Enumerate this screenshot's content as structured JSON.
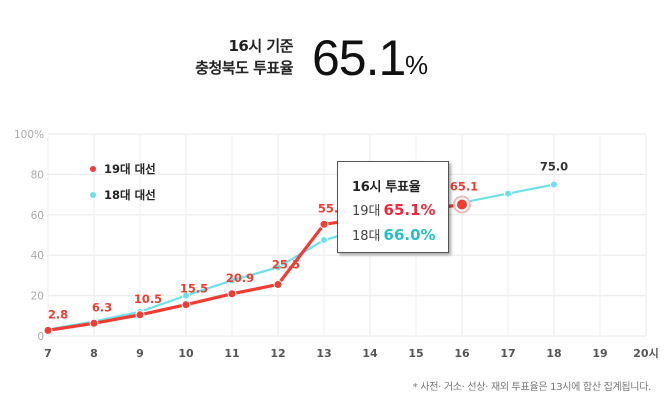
{
  "headline": {
    "line1": "16시 기준",
    "line2": "충청북도 투표율",
    "value": "65.1",
    "unit": "%"
  },
  "legend": [
    {
      "label": "19대 대선",
      "color": "#f03c32"
    },
    {
      "label": "18대 대선",
      "color": "#6ee0ea"
    }
  ],
  "tooltip": {
    "title": "16시 투표율",
    "rows": [
      {
        "label": "19대",
        "value": "65.1%",
        "color": "#f0283c"
      },
      {
        "label": "18대",
        "value": "66.0%",
        "color": "#24c0c8"
      }
    ]
  },
  "footnote": "* 사전· 거소· 선상· 재외 투표율은 13시에 합산 집계됩니다.",
  "chart_data": {
    "type": "line",
    "title": "16시 기준 충청북도 투표율",
    "xlabel": "",
    "ylabel": "",
    "x": [
      7,
      8,
      9,
      10,
      11,
      12,
      13,
      14,
      15,
      16,
      17,
      18,
      19,
      20
    ],
    "x_tick_labels": [
      "7",
      "8",
      "9",
      "10",
      "11",
      "12",
      "13",
      "14",
      "15",
      "16",
      "17",
      "18",
      "19",
      "20시"
    ],
    "y_tick_labels": [
      "0",
      "20",
      "40",
      "60",
      "80",
      "100%"
    ],
    "ylim": [
      0,
      100
    ],
    "grid": true,
    "legend_position": "top-left inside",
    "series": [
      {
        "name": "19대 대선",
        "color": "#f03c32",
        "values": [
          2.8,
          6.3,
          10.5,
          15.5,
          20.9,
          25.5,
          55.3,
          null,
          null,
          65.1,
          null,
          null,
          null,
          null
        ],
        "labels": [
          "2.8",
          "6.3",
          "10.5",
          "15.5",
          "20.9",
          "25.5",
          "55.3",
          null,
          null,
          "65.1",
          null,
          null,
          null,
          null
        ]
      },
      {
        "name": "18대 대선",
        "color": "#6ee0ea",
        "values": [
          3.2,
          7.2,
          12.0,
          20.0,
          27.5,
          34.0,
          47.5,
          54.0,
          60.0,
          66.0,
          70.5,
          75.0,
          null,
          null
        ],
        "labels": [
          null,
          null,
          null,
          null,
          null,
          null,
          null,
          null,
          null,
          null,
          null,
          "75.0",
          null,
          null
        ]
      }
    ],
    "highlight": {
      "x": 16,
      "series": "19대 대선",
      "value": 65.1
    }
  }
}
